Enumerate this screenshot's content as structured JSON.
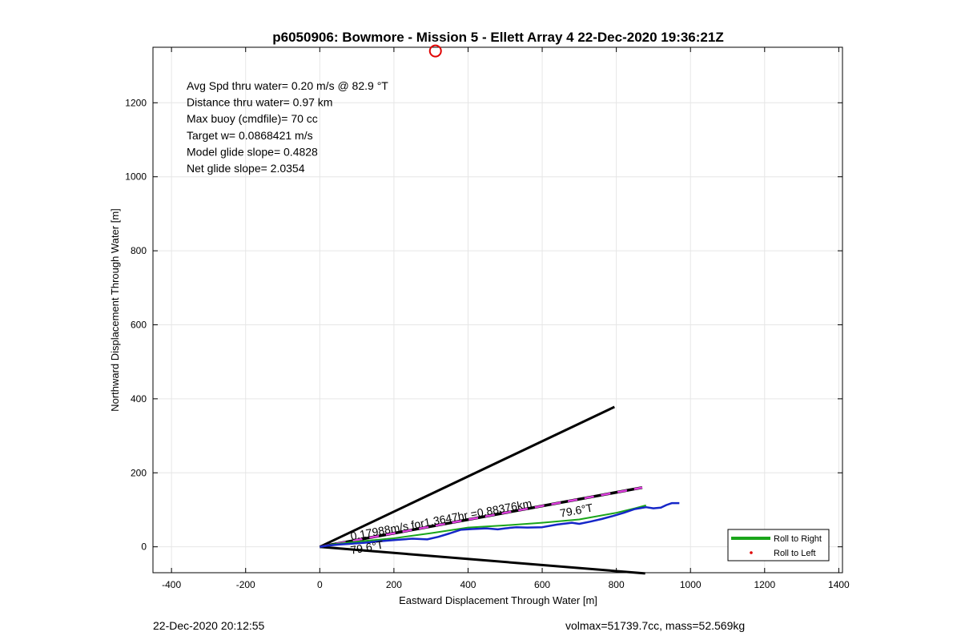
{
  "chart_data": {
    "type": "line",
    "title": "p6050906: Bowmore - Mission 5 - Ellett Array 4 22-Dec-2020 19:36:21Z",
    "xlabel": "Eastward Displacement Through Water [m]",
    "ylabel": "Northward Displacement Through Water [m]",
    "xlim": [
      -450,
      1410
    ],
    "ylim": [
      -70,
      1350
    ],
    "x_ticks": [
      -400,
      -200,
      0,
      200,
      400,
      600,
      800,
      1000,
      1200,
      1400
    ],
    "y_ticks": [
      0,
      200,
      400,
      600,
      800,
      1000,
      1200
    ],
    "grid": true,
    "stats": [
      "Avg Spd thru water=  0.20 m/s @  82.9 °T",
      "Distance thru water=  0.97 km",
      "Max buoy (cmdfile)= 70 cc",
      "Target w= 0.0868421 m/s",
      "Model glide slope= 0.4828",
      "Net glide slope= 2.0354"
    ],
    "marker_circle": {
      "x": 312,
      "y": 1340
    },
    "cone_lines": [
      {
        "x": [
          0,
          795
        ],
        "y": [
          0,
          378
        ]
      },
      {
        "x": [
          0,
          878
        ],
        "y": [
          0,
          -72
        ]
      }
    ],
    "heading_line": {
      "x": [
        0,
        870
      ],
      "y": [
        0,
        160
      ]
    },
    "annotations": [
      {
        "text": "0.17988m/s for1.3647hr =0.88376km",
        "x": 85,
        "y": 18,
        "angle_deg": 10.4
      },
      {
        "text": "79.6°T",
        "x": 650,
        "y": 80,
        "angle_deg": 10.4
      },
      {
        "text": "79.6°T",
        "x": 85,
        "y": -20,
        "angle_deg": 10.4
      }
    ],
    "series": [
      {
        "name": "Roll to Right",
        "color": "#1aa51a",
        "x": [
          0,
          40,
          100,
          200,
          300,
          400,
          500,
          600,
          700,
          800,
          850,
          880
        ],
        "y": [
          0,
          7,
          14,
          23,
          37,
          52,
          58,
          65,
          74,
          92,
          104,
          112
        ]
      },
      {
        "name": "Roll to Left",
        "color": "#e00000",
        "x": [],
        "y": []
      },
      {
        "color": "#1526c8",
        "x": [
          0,
          20,
          50,
          80,
          120,
          160,
          200,
          250,
          290,
          320,
          350,
          380,
          410,
          450,
          480,
          500,
          530,
          560,
          600,
          640,
          680,
          700,
          730,
          760,
          790,
          820,
          850,
          880,
          900,
          920,
          935,
          950,
          970
        ],
        "y": [
          0,
          3,
          6,
          8,
          11,
          15,
          18,
          22,
          20,
          27,
          36,
          46,
          48,
          50,
          47,
          50,
          53,
          52,
          53,
          60,
          65,
          62,
          68,
          75,
          83,
          92,
          102,
          107,
          104,
          106,
          113,
          118,
          118
        ]
      }
    ],
    "legend": {
      "position": "bottom-right",
      "entries": [
        {
          "label": "Roll to Right",
          "style": "line",
          "color": "#1aa51a"
        },
        {
          "label": "Roll to Left",
          "style": "dot",
          "color": "#e00000"
        }
      ]
    },
    "footer_left": "22-Dec-2020 20:12:55",
    "footer_right": "volmax=51739.7cc, mass=52.569kg"
  }
}
